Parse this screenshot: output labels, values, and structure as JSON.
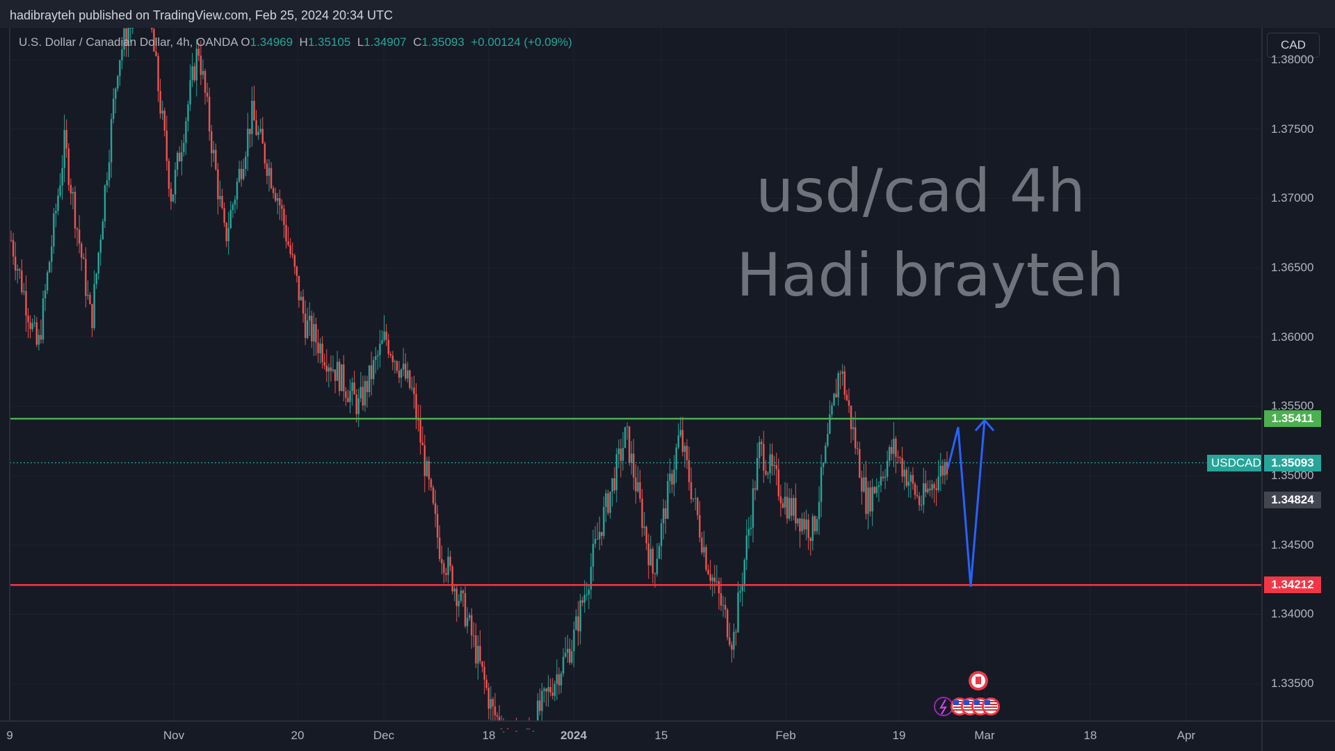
{
  "publish_line": "hadibrayteh published on TradingView.com, Feb 25, 2024 20:34 UTC",
  "legend": {
    "symbol": "U.S. Dollar / Canadian Dollar, 4h, OANDA",
    "open_label": "O",
    "open": "1.34969",
    "high_label": "H",
    "high": "1.35105",
    "low_label": "L",
    "low": "1.34907",
    "close_label": "C",
    "close": "1.35093",
    "change": "+0.00124 (+0.09%)"
  },
  "currency_button": "CAD",
  "watermark": {
    "line1": "usd/cad 4h",
    "line2": "Hadi brayteh"
  },
  "colors": {
    "background": "#161a25",
    "up": "#26a69a",
    "down": "#ef5350",
    "resistance": "#4caf50",
    "support": "#f23645",
    "projection": "#2962ff"
  },
  "chart_data": {
    "type": "candlestick",
    "y_ticks": [
      "1.38000",
      "1.37500",
      "1.37000",
      "1.36500",
      "1.36000",
      "1.35500",
      "1.35000",
      "1.34500",
      "1.34000",
      "1.33500"
    ],
    "x_ticks": [
      "9",
      "Nov",
      "20",
      "Dec",
      "18",
      "2024",
      "15",
      "Feb",
      "19",
      "Mar",
      "18",
      "Apr"
    ],
    "ylim": [
      1.3323,
      1.3823
    ],
    "price_path": [
      1.367,
      1.359,
      1.374,
      1.361,
      1.38,
      1.386,
      1.37,
      1.381,
      1.367,
      1.376,
      1.37,
      1.361,
      1.358,
      1.355,
      1.36,
      1.356,
      1.345,
      1.34,
      1.333,
      1.33,
      1.334,
      1.338,
      1.346,
      1.353,
      1.343,
      1.353,
      1.344,
      1.338,
      1.352,
      1.348,
      1.346,
      1.358,
      1.348,
      1.352,
      1.348,
      1.351
    ],
    "horizontal_levels": [
      {
        "price": 1.35411,
        "label": "1.35411",
        "role": "resistance"
      },
      {
        "price": 1.34212,
        "label": "1.34212",
        "role": "support"
      }
    ],
    "current_price": {
      "symbol": "USDCAD",
      "price": 1.35093,
      "label": "1.35093"
    },
    "secondary_price": {
      "price": 1.34824,
      "label": "1.34824"
    },
    "projection_path": [
      1.3505,
      1.3535,
      1.342,
      1.354
    ]
  }
}
